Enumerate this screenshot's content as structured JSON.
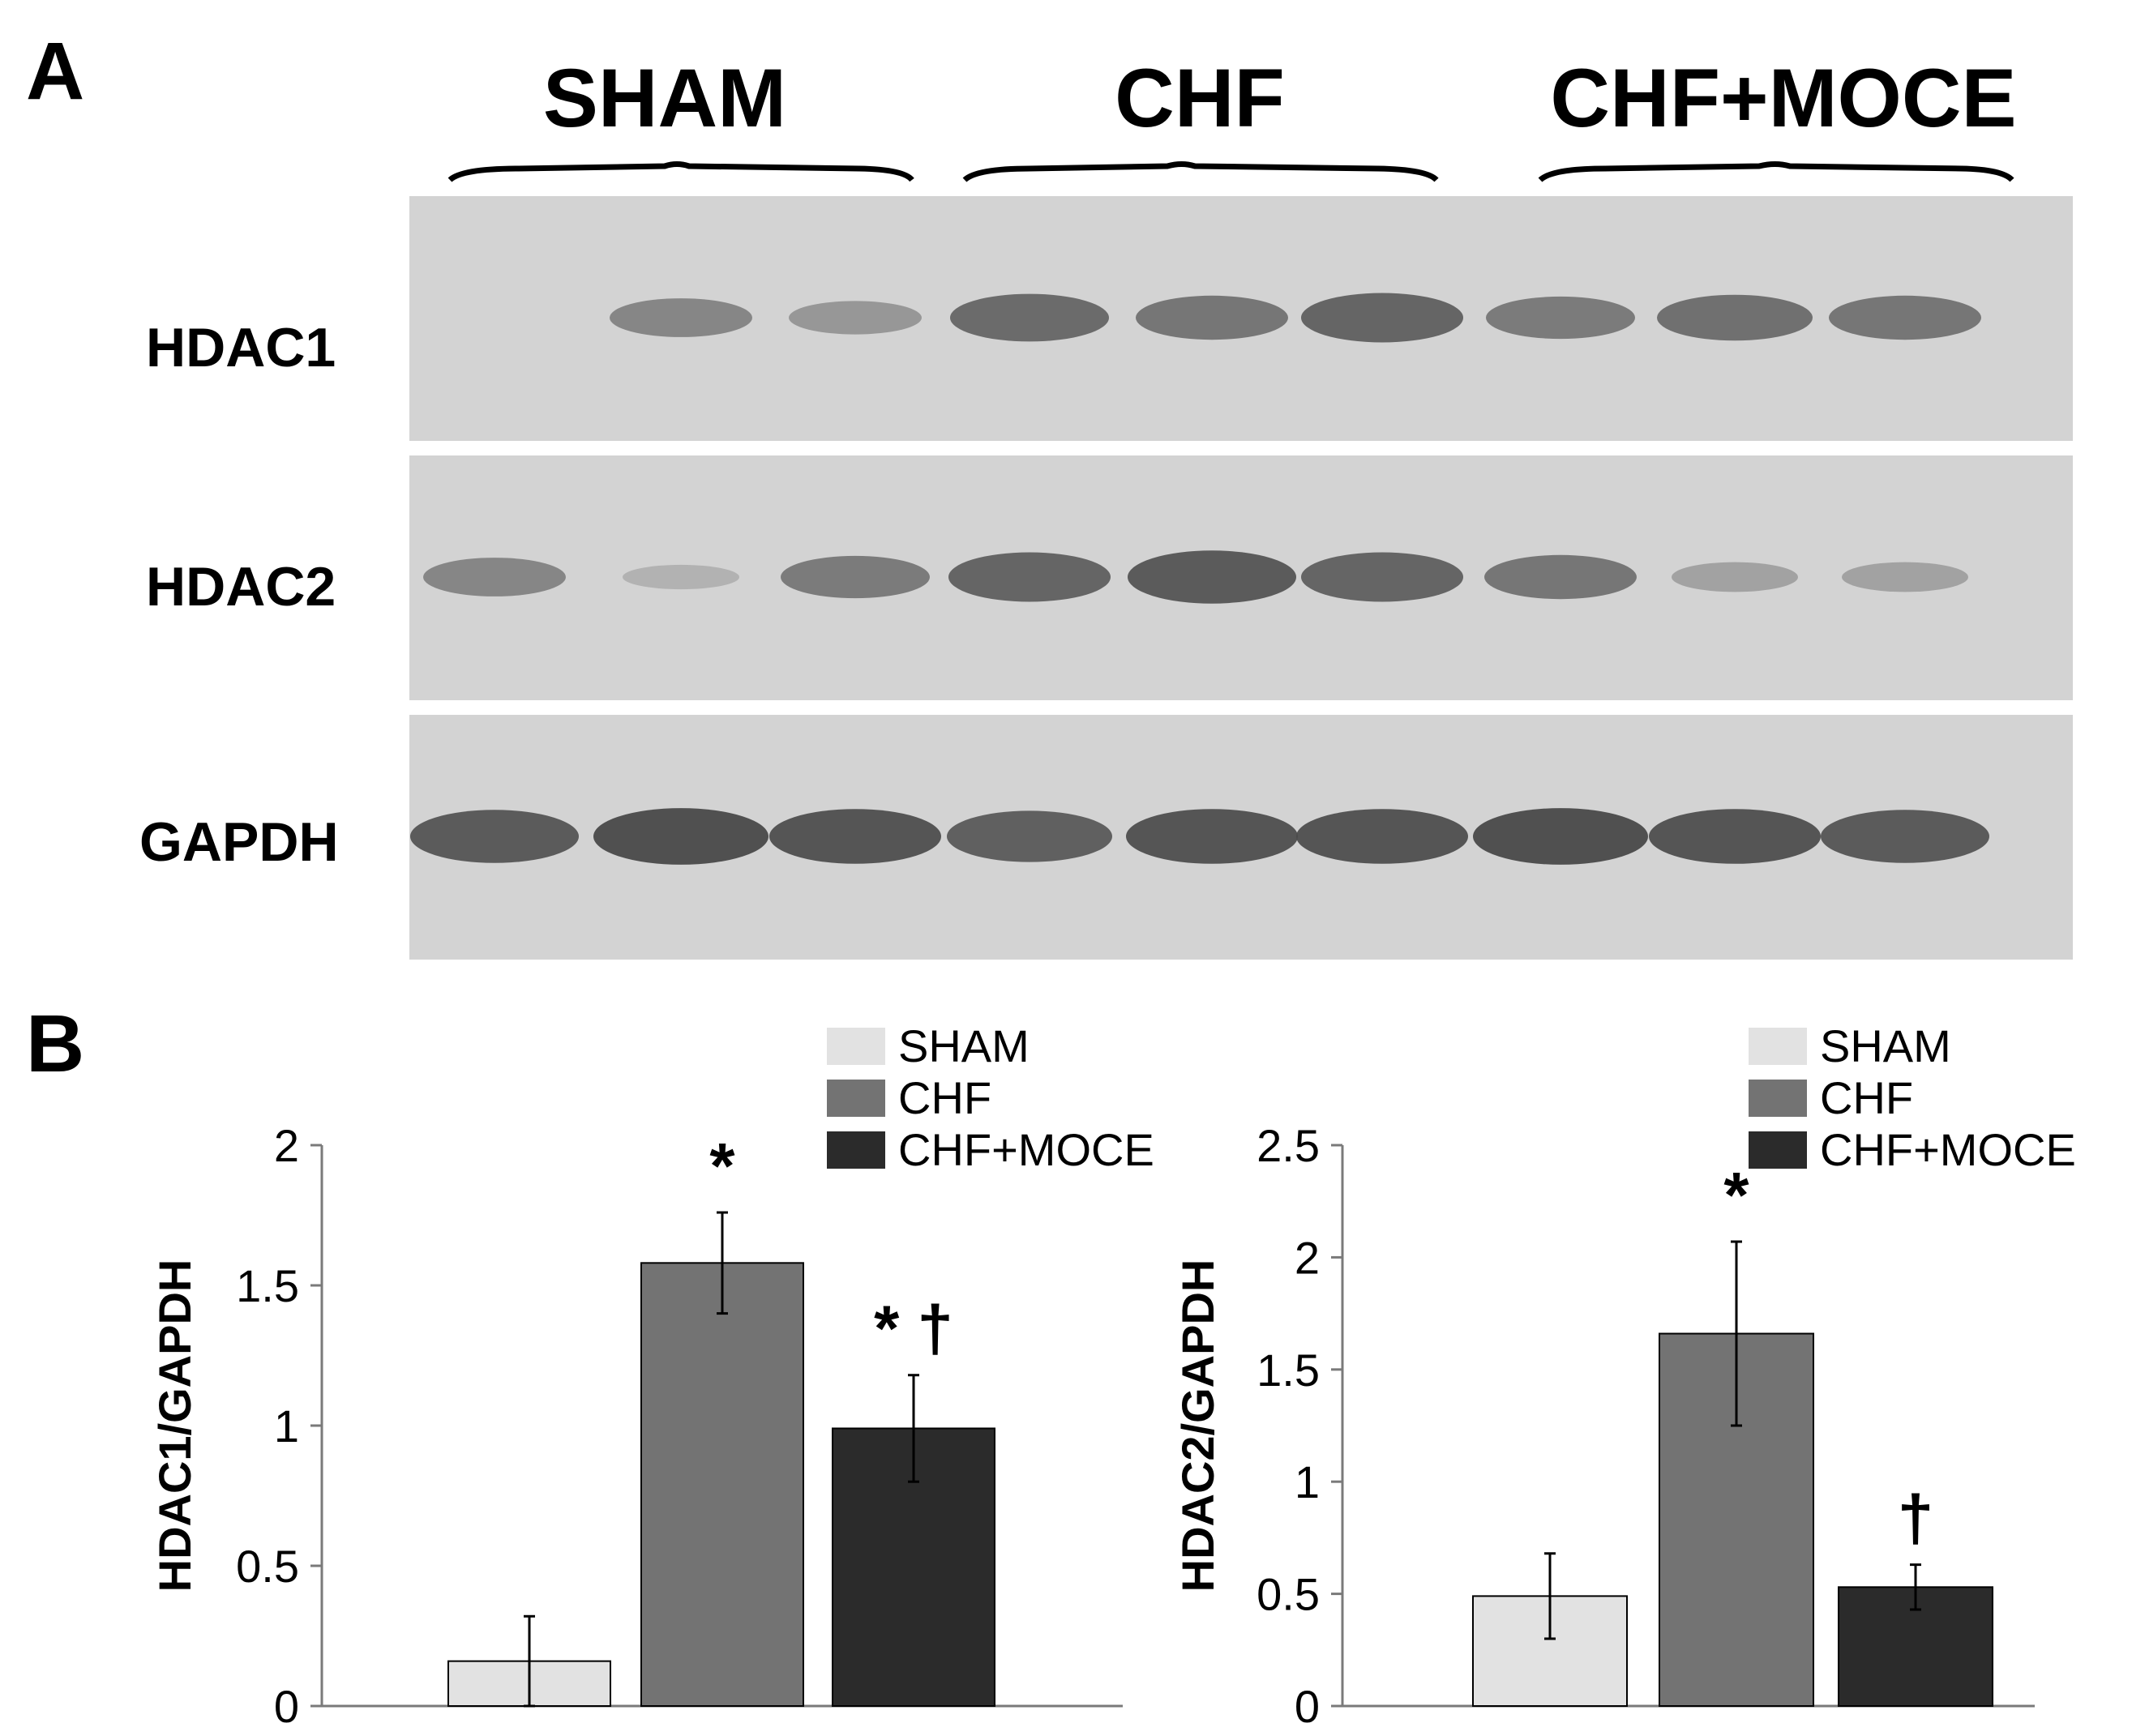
{
  "panel_a": {
    "letter": "A",
    "groups": [
      "SHAM",
      "CHF",
      "CHF+MOCE"
    ],
    "rows": [
      {
        "label": "HDAC1",
        "intensities": [
          0.0,
          0.45,
          0.3,
          0.7,
          0.6,
          0.75,
          0.55,
          0.65,
          0.6
        ]
      },
      {
        "label": "HDAC2",
        "intensities": [
          0.45,
          0.05,
          0.55,
          0.75,
          0.85,
          0.75,
          0.6,
          0.2,
          0.2
        ]
      },
      {
        "label": "GAPDH",
        "intensities": [
          0.85,
          0.95,
          0.9,
          0.8,
          0.9,
          0.9,
          0.95,
          0.9,
          0.85
        ]
      }
    ],
    "colors": {
      "membrane": "#d3d3d3",
      "band": "#4a4a4a"
    }
  },
  "panel_b": {
    "letter": "B",
    "colors": {
      "SHAM": "#e2e2e2",
      "CHF": "#737373",
      "CHF+MOCE": "#2b2b2b"
    }
  },
  "chart_data": [
    {
      "type": "bar",
      "categories": [
        "SHAM",
        "CHF",
        "CHF+MOCE"
      ],
      "series": [
        {
          "name": "HDAC1/GAPDH",
          "values": [
            0.16,
            1.58,
            0.99
          ],
          "errors": [
            0.16,
            0.18,
            0.19
          ]
        }
      ],
      "legend": [
        "SHAM",
        "CHF",
        "CHF+MOCE"
      ],
      "legend_position": "top-right",
      "xlabel": "",
      "ylabel": "HDAC1/GAPDH",
      "ylim": [
        0,
        2
      ],
      "yticks": [
        "0",
        "0.5",
        "1",
        "1.5",
        "2"
      ],
      "tick_values": [
        0,
        0.5,
        1,
        1.5,
        2
      ],
      "annotations": [
        "",
        "*",
        "* †"
      ],
      "grid": false
    },
    {
      "type": "bar",
      "categories": [
        "SHAM",
        "CHF",
        "CHF+MOCE"
      ],
      "series": [
        {
          "name": "HDAC2/GAPDH",
          "values": [
            0.49,
            1.66,
            0.53
          ],
          "errors": [
            0.19,
            0.41,
            0.1
          ]
        }
      ],
      "legend": [
        "SHAM",
        "CHF",
        "CHF+MOCE"
      ],
      "legend_position": "top-right",
      "xlabel": "",
      "ylabel": "HDAC2/GAPDH",
      "ylim": [
        0,
        2.5
      ],
      "yticks": [
        "0",
        "0.5",
        "1",
        "1.5",
        "2",
        "2.5"
      ],
      "tick_values": [
        0,
        0.5,
        1,
        1.5,
        2,
        2.5
      ],
      "annotations": [
        "",
        "*",
        "†"
      ],
      "grid": false
    }
  ]
}
